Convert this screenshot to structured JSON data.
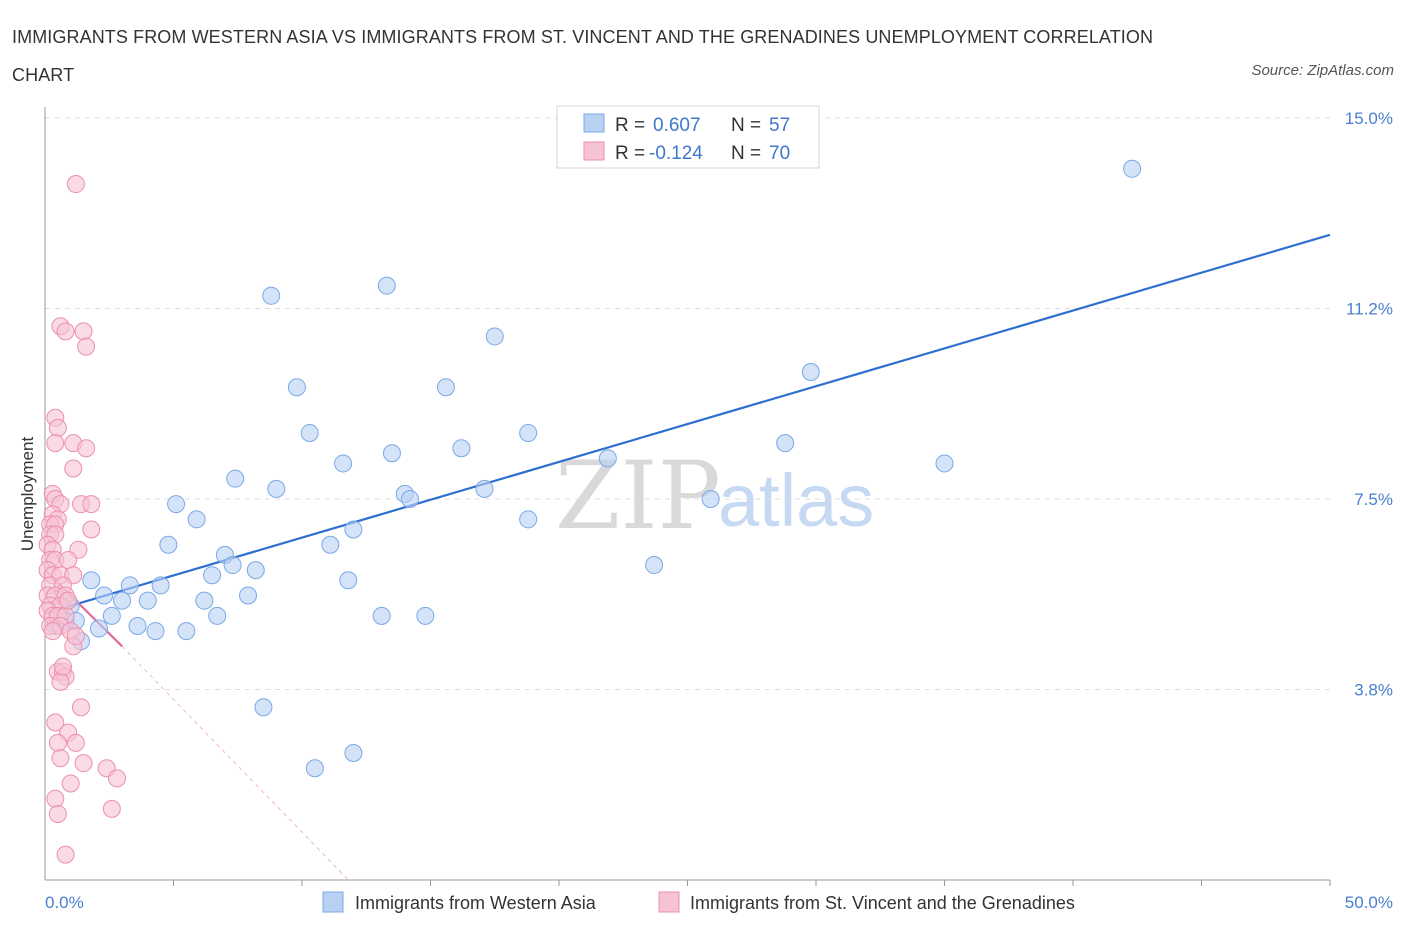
{
  "chart_data": {
    "type": "scatter",
    "title": "IMMIGRANTS FROM WESTERN ASIA VS IMMIGRANTS FROM ST. VINCENT AND THE GRENADINES UNEMPLOYMENT CORRELATION CHART",
    "source": "Source: ZipAtlas.com",
    "ylabel": "Unemployment",
    "xlim": [
      0,
      50
    ],
    "ylim": [
      0,
      15
    ],
    "x_tick_labels": {
      "min": "0.0%",
      "max": "50.0%"
    },
    "y_ticks": [
      {
        "value": 15.0,
        "label": "15.0%"
      },
      {
        "value": 11.25,
        "label": "11.2%"
      },
      {
        "value": 7.5,
        "label": "7.5%"
      },
      {
        "value": 3.75,
        "label": "3.8%"
      }
    ],
    "watermark": {
      "zip": "ZIP",
      "atlas": "atlas"
    },
    "stats_legend": [
      {
        "r_label": "R =",
        "r_value": "0.607",
        "n_label": "N =",
        "n_value": "57"
      },
      {
        "r_label": "R =",
        "r_value": "-0.124",
        "n_label": "N =",
        "n_value": "70"
      }
    ],
    "series": [
      {
        "name": "Immigrants from Western Asia",
        "color": "#7aa9e6",
        "fill": "#b8d1f3",
        "line_color": "#2e6fd0",
        "trend": {
          "x": [
            0.0,
            50.0
          ],
          "y": [
            5.25,
            12.7
          ],
          "style": "solid"
        },
        "points": [
          [
            42.3,
            14.0
          ],
          [
            8.8,
            11.5
          ],
          [
            13.3,
            11.7
          ],
          [
            17.5,
            10.7
          ],
          [
            29.8,
            10.0
          ],
          [
            9.8,
            9.7
          ],
          [
            15.6,
            9.7
          ],
          [
            10.3,
            8.8
          ],
          [
            18.8,
            8.8
          ],
          [
            13.5,
            8.4
          ],
          [
            16.2,
            8.5
          ],
          [
            28.8,
            8.6
          ],
          [
            11.6,
            8.2
          ],
          [
            21.9,
            8.3
          ],
          [
            35.0,
            8.2
          ],
          [
            7.4,
            7.9
          ],
          [
            9.0,
            7.7
          ],
          [
            17.1,
            7.7
          ],
          [
            14.0,
            7.6
          ],
          [
            14.2,
            7.5
          ],
          [
            25.9,
            7.5
          ],
          [
            5.1,
            7.4
          ],
          [
            5.9,
            7.1
          ],
          [
            18.8,
            7.1
          ],
          [
            12.0,
            6.9
          ],
          [
            11.1,
            6.6
          ],
          [
            4.8,
            6.6
          ],
          [
            7.0,
            6.4
          ],
          [
            7.3,
            6.2
          ],
          [
            8.2,
            6.1
          ],
          [
            23.7,
            6.2
          ],
          [
            6.5,
            6.0
          ],
          [
            11.8,
            5.9
          ],
          [
            1.8,
            5.9
          ],
          [
            3.3,
            5.8
          ],
          [
            4.5,
            5.8
          ],
          [
            2.3,
            5.6
          ],
          [
            3.0,
            5.5
          ],
          [
            4.0,
            5.5
          ],
          [
            6.2,
            5.5
          ],
          [
            7.9,
            5.6
          ],
          [
            1.0,
            5.4
          ],
          [
            2.6,
            5.2
          ],
          [
            6.7,
            5.2
          ],
          [
            13.1,
            5.2
          ],
          [
            14.8,
            5.2
          ],
          [
            0.8,
            5.1
          ],
          [
            1.2,
            5.1
          ],
          [
            3.6,
            5.0
          ],
          [
            4.3,
            4.9
          ],
          [
            5.5,
            4.9
          ],
          [
            2.1,
            4.95
          ],
          [
            0.4,
            5.0
          ],
          [
            1.4,
            4.7
          ],
          [
            8.5,
            3.4
          ],
          [
            12.0,
            2.5
          ],
          [
            10.5,
            2.2
          ]
        ]
      },
      {
        "name": "Immigrants from St. Vincent and the Grenadines",
        "color": "#ec8fae",
        "fill": "#f6c3d4",
        "line_color": "#e06a98",
        "trend": {
          "x": [
            0.0,
            3.0
          ],
          "y": [
            6.1,
            4.6
          ],
          "style": "solid"
        },
        "trend_extension": {
          "x": [
            3.0,
            11.8
          ],
          "y": [
            4.6,
            0.0
          ],
          "style": "dashed"
        },
        "points": [
          [
            1.2,
            13.7
          ],
          [
            0.6,
            10.9
          ],
          [
            0.8,
            10.8
          ],
          [
            1.5,
            10.8
          ],
          [
            1.6,
            10.5
          ],
          [
            0.4,
            9.1
          ],
          [
            0.5,
            8.9
          ],
          [
            0.4,
            8.6
          ],
          [
            1.1,
            8.6
          ],
          [
            1.6,
            8.5
          ],
          [
            1.1,
            8.1
          ],
          [
            0.3,
            7.6
          ],
          [
            0.4,
            7.5
          ],
          [
            0.6,
            7.4
          ],
          [
            1.4,
            7.4
          ],
          [
            1.8,
            7.4
          ],
          [
            0.3,
            7.2
          ],
          [
            0.5,
            7.1
          ],
          [
            0.2,
            7.0
          ],
          [
            0.4,
            7.0
          ],
          [
            1.8,
            6.9
          ],
          [
            0.2,
            6.8
          ],
          [
            0.4,
            6.8
          ],
          [
            0.1,
            6.6
          ],
          [
            0.3,
            6.5
          ],
          [
            1.3,
            6.5
          ],
          [
            0.2,
            6.3
          ],
          [
            0.4,
            6.3
          ],
          [
            0.9,
            6.3
          ],
          [
            0.1,
            6.1
          ],
          [
            0.3,
            6.0
          ],
          [
            0.6,
            6.0
          ],
          [
            1.1,
            6.0
          ],
          [
            0.2,
            5.8
          ],
          [
            0.7,
            5.8
          ],
          [
            0.1,
            5.6
          ],
          [
            0.4,
            5.6
          ],
          [
            0.8,
            5.6
          ],
          [
            0.2,
            5.4
          ],
          [
            0.6,
            5.4
          ],
          [
            0.1,
            5.3
          ],
          [
            0.3,
            5.2
          ],
          [
            0.5,
            5.2
          ],
          [
            0.8,
            5.2
          ],
          [
            0.2,
            5.0
          ],
          [
            0.6,
            5.0
          ],
          [
            1.0,
            4.9
          ],
          [
            0.3,
            4.9
          ],
          [
            1.1,
            4.6
          ],
          [
            0.5,
            4.1
          ],
          [
            0.7,
            4.1
          ],
          [
            0.8,
            4.0
          ],
          [
            0.6,
            3.9
          ],
          [
            1.4,
            3.4
          ],
          [
            0.4,
            3.1
          ],
          [
            0.9,
            2.9
          ],
          [
            1.2,
            2.7
          ],
          [
            0.5,
            2.7
          ],
          [
            0.6,
            2.4
          ],
          [
            1.5,
            2.3
          ],
          [
            2.4,
            2.2
          ],
          [
            2.8,
            2.0
          ],
          [
            1.0,
            1.9
          ],
          [
            0.4,
            1.6
          ],
          [
            2.6,
            1.4
          ],
          [
            0.5,
            1.3
          ],
          [
            0.8,
            0.5
          ],
          [
            0.7,
            4.2
          ],
          [
            1.2,
            4.8
          ],
          [
            0.9,
            5.5
          ]
        ]
      }
    ]
  }
}
